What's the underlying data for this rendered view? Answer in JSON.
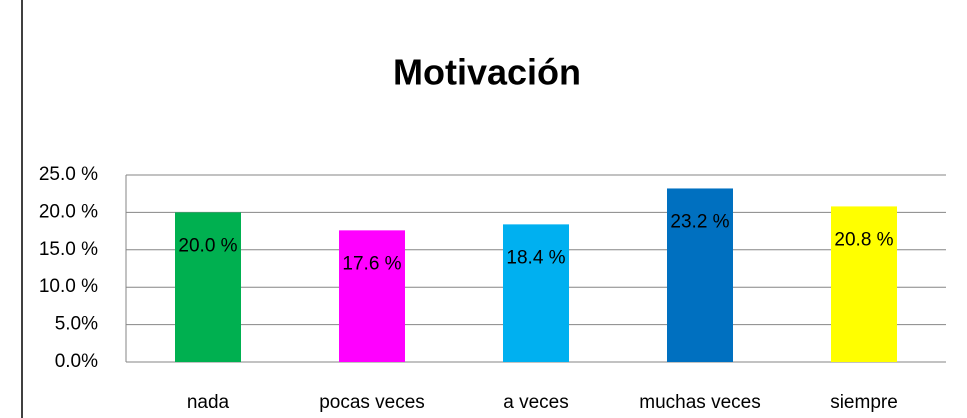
{
  "chart_data": {
    "type": "bar",
    "title": "Motivación",
    "categories": [
      "nada",
      "pocas veces",
      "a veces",
      "muchas veces",
      "siempre"
    ],
    "values": [
      20.0,
      17.6,
      18.4,
      23.2,
      20.8
    ],
    "value_labels": [
      "20.0 %",
      "17.6 %",
      "18.4 %",
      "23.2 %",
      "20.8 %"
    ],
    "colors": [
      "#00b050",
      "#ff00ff",
      "#00b0f0",
      "#0070c0",
      "#ffff00"
    ],
    "ylim": [
      0,
      25
    ],
    "yticks": [
      {
        "value": 0,
        "label": "0.0%"
      },
      {
        "value": 5,
        "label": "5.0%"
      },
      {
        "value": 10,
        "label": "10.0 %"
      },
      {
        "value": 15,
        "label": "15.0 %"
      },
      {
        "value": 20,
        "label": "20.0 %"
      },
      {
        "value": 25,
        "label": "25.0 %"
      }
    ],
    "grid": true
  }
}
